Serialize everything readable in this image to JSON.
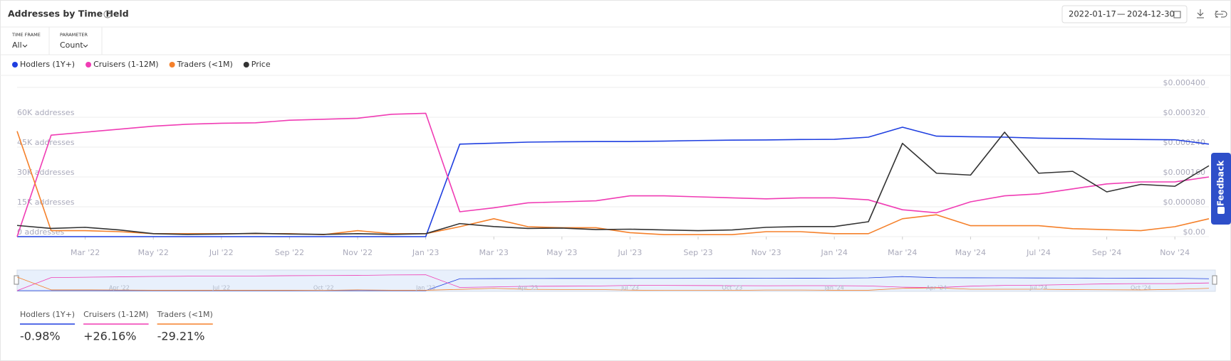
{
  "header": {
    "title": "Addresses by Time Held",
    "date_from": "2022-01-17",
    "date_to": "2024-12-30"
  },
  "controls": [
    {
      "label": "TIME FRAME",
      "value": "All"
    },
    {
      "label": "PARAMETER",
      "value": "Count"
    }
  ],
  "chart_data": {
    "type": "line",
    "x": [
      "2022-01",
      "2022-02",
      "2022-03",
      "2022-04",
      "2022-05",
      "2022-06",
      "2022-07",
      "2022-08",
      "2022-09",
      "2022-10",
      "2022-11",
      "2022-12",
      "2023-01",
      "2023-02",
      "2023-03",
      "2023-04",
      "2023-05",
      "2023-06",
      "2023-07",
      "2023-08",
      "2023-09",
      "2023-10",
      "2023-11",
      "2023-12",
      "2024-01",
      "2024-02",
      "2024-03",
      "2024-04",
      "2024-05",
      "2024-06",
      "2024-07",
      "2024-08",
      "2024-09",
      "2024-10",
      "2024-11",
      "2024-12"
    ],
    "series": [
      {
        "name": "Hodlers (1Y+)",
        "color": "#1f3fe0",
        "values": [
          0,
          0,
          0,
          0,
          0,
          0,
          0,
          0,
          0,
          0,
          0,
          0,
          0,
          46500,
          47000,
          47500,
          47700,
          47800,
          47800,
          48000,
          48300,
          48500,
          48600,
          48800,
          48900,
          50000,
          55000,
          50500,
          50200,
          50000,
          49500,
          49300,
          49000,
          48800,
          48700,
          46500
        ]
      },
      {
        "name": "Cruisers (1-12M)",
        "color": "#f03cb4",
        "values": [
          0,
          51000,
          52500,
          54000,
          55500,
          56500,
          57000,
          57200,
          58500,
          59000,
          59500,
          61500,
          62000,
          12500,
          14500,
          17000,
          17500,
          18000,
          20500,
          20500,
          20000,
          19500,
          19000,
          19500,
          19500,
          18500,
          13500,
          12000,
          17500,
          20500,
          21500,
          24000,
          26500,
          27500,
          27500,
          30000
        ]
      },
      {
        "name": "Traders (<1M)",
        "color": "#f5802a",
        "values": [
          53000,
          3000,
          3000,
          2500,
          1500,
          1500,
          1500,
          1500,
          1500,
          1000,
          3000,
          1500,
          1500,
          5000,
          9000,
          5000,
          4500,
          4500,
          2000,
          1000,
          1000,
          1000,
          2500,
          2500,
          1500,
          1500,
          9000,
          11000,
          5500,
          5500,
          5500,
          4000,
          3500,
          3000,
          5000,
          9000
        ]
      },
      {
        "name": "Price",
        "color": "#333333",
        "axis": "y2",
        "values": [
          3e-05,
          2.2e-05,
          2.5e-05,
          1.8e-05,
          8e-06,
          6e-06,
          7e-06,
          9e-06,
          7e-06,
          6e-06,
          8e-06,
          6e-06,
          8e-06,
          3.5e-05,
          2.7e-05,
          2.2e-05,
          2.3e-05,
          1.9e-05,
          2e-05,
          1.8e-05,
          1.6e-05,
          1.8e-05,
          2.5e-05,
          2.7e-05,
          2.7e-05,
          4e-05,
          0.00025,
          0.00017,
          0.000165,
          0.00028,
          0.00017,
          0.000175,
          0.00012,
          0.00014,
          0.000135,
          0.00019
        ]
      }
    ],
    "xlim": [
      "2022-01",
      "2024-12"
    ],
    "xticks": [
      {
        "value": "2022-03",
        "label": "Mar '22"
      },
      {
        "value": "2022-05",
        "label": "May '22"
      },
      {
        "value": "2022-07",
        "label": "Jul '22"
      },
      {
        "value": "2022-09",
        "label": "Sep '22"
      },
      {
        "value": "2022-11",
        "label": "Nov '22"
      },
      {
        "value": "2023-01",
        "label": "Jan '23"
      },
      {
        "value": "2023-03",
        "label": "Mar '23"
      },
      {
        "value": "2023-05",
        "label": "May '23"
      },
      {
        "value": "2023-07",
        "label": "Jul '23"
      },
      {
        "value": "2023-09",
        "label": "Sep '23"
      },
      {
        "value": "2023-11",
        "label": "Nov '23"
      },
      {
        "value": "2024-01",
        "label": "Jan '24"
      },
      {
        "value": "2024-03",
        "label": "Mar '24"
      },
      {
        "value": "2024-05",
        "label": "May '24"
      },
      {
        "value": "2024-07",
        "label": "Jul '24"
      },
      {
        "value": "2024-09",
        "label": "Sep '24"
      },
      {
        "value": "2024-11",
        "label": "Nov '24"
      }
    ],
    "ylim": [
      0,
      75000
    ],
    "yticks": [
      {
        "value": 0,
        "label": "0 addresses"
      },
      {
        "value": 15000,
        "label": "15K addresses"
      },
      {
        "value": 30000,
        "label": "30K addresses"
      },
      {
        "value": 45000,
        "label": "45K addresses"
      },
      {
        "value": 60000,
        "label": "60K addresses"
      }
    ],
    "y2lim": [
      0,
      0.0004
    ],
    "y2ticks": [
      {
        "value": 0,
        "label": "$0.00"
      },
      {
        "value": 8e-05,
        "label": "$0.000080"
      },
      {
        "value": 0.00016,
        "label": "$0.000160"
      },
      {
        "value": 0.00024,
        "label": "$0.000240"
      },
      {
        "value": 0.00032,
        "label": "$0.000320"
      },
      {
        "value": 0.0004,
        "label": "$0.000400"
      }
    ],
    "grid": true,
    "navigator_ticks": [
      {
        "value": "2022-04",
        "label": "Apr '22"
      },
      {
        "value": "2022-07",
        "label": "Jul '22"
      },
      {
        "value": "2022-10",
        "label": "Oct '22"
      },
      {
        "value": "2023-01",
        "label": "Jan '23"
      },
      {
        "value": "2023-04",
        "label": "Apr '23"
      },
      {
        "value": "2023-07",
        "label": "Jul '23"
      },
      {
        "value": "2023-10",
        "label": "Oct '23"
      },
      {
        "value": "2024-01",
        "label": "Jan '24"
      },
      {
        "value": "2024-04",
        "label": "Apr '24"
      },
      {
        "value": "2024-07",
        "label": "Jul '24"
      },
      {
        "value": "2024-10",
        "label": "Oct '24"
      }
    ]
  },
  "summary": [
    "-0.98%",
    "+26.16%",
    "-29.21%"
  ],
  "feedback": "Feedback"
}
